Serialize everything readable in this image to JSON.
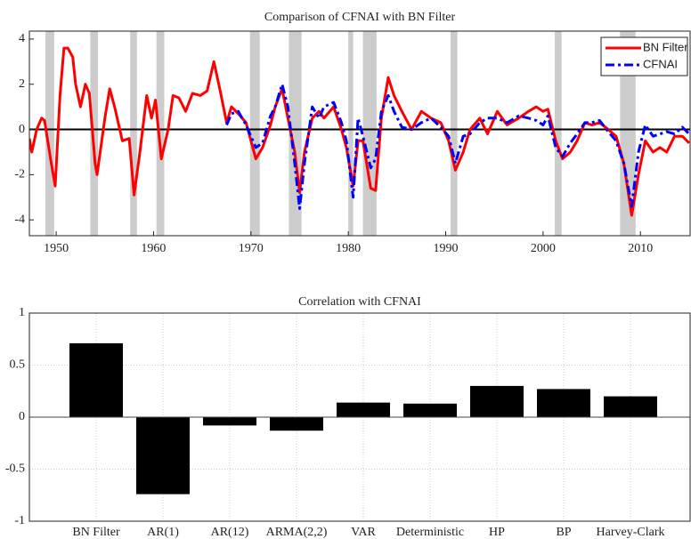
{
  "chart_data": [
    {
      "type": "line",
      "title": "Comparison of CFNAI with BN Filter",
      "x": [
        1947.25,
        1947.5,
        1948.0,
        1948.5,
        1948.8,
        1949.5,
        1949.9,
        1950.4,
        1950.8,
        1951.2,
        1951.7,
        1952.0,
        1952.5,
        1953.0,
        1953.4,
        1954.0,
        1954.2,
        1955.0,
        1955.5,
        1956.0,
        1956.8,
        1957.5,
        1958.0,
        1958.6,
        1959.3,
        1959.8,
        1960.2,
        1960.8,
        1961.5,
        1962.0,
        1962.6,
        1963.3,
        1964.0,
        1964.8,
        1965.5,
        1966.2,
        1966.8,
        1967.5,
        1968.0,
        1968.7,
        1969.5,
        1970.5,
        1971.2,
        1972.0,
        1972.5,
        1973.2,
        1973.8,
        1974.5,
        1975.0,
        1975.5,
        1976.3,
        1977.0,
        1977.5,
        1978.5,
        1979.3,
        1979.8,
        1980.5,
        1981.0,
        1981.5,
        1982.3,
        1982.8,
        1983.4,
        1984.1,
        1984.7,
        1985.5,
        1986.5,
        1987.5,
        1988.5,
        1989.5,
        1990.3,
        1991.0,
        1991.8,
        1992.5,
        1993.5,
        1994.3,
        1995.3,
        1996.3,
        1997.5,
        1998.5,
        1999.3,
        2000.0,
        2000.5,
        2001.3,
        2002.0,
        2002.8,
        2003.5,
        2004.3,
        2005.0,
        2005.8,
        2006.7,
        2007.5,
        2008.3,
        2009.1,
        2009.8,
        2010.5,
        2011.3,
        2012.0,
        2012.7,
        2013.5,
        2014.3,
        2015.0
      ],
      "series": [
        {
          "name": "BN Filter",
          "color": "#ff0000",
          "style": "solid",
          "values": [
            -0.4,
            -1.0,
            0.0,
            0.5,
            0.4,
            -1.5,
            -2.5,
            1.5,
            3.6,
            3.6,
            3.2,
            2.0,
            1.0,
            2.0,
            1.6,
            -1.5,
            -2.0,
            0.5,
            1.8,
            1.0,
            -0.5,
            -0.4,
            -2.9,
            -1.0,
            1.5,
            0.5,
            1.3,
            -1.3,
            0.0,
            1.5,
            1.4,
            0.8,
            1.6,
            1.5,
            1.7,
            3.0,
            1.8,
            0.3,
            1.0,
            0.7,
            0.3,
            -1.3,
            -0.8,
            0.2,
            1.0,
            1.8,
            0.5,
            -1.0,
            -2.8,
            -1.0,
            0.5,
            0.8,
            0.5,
            1.0,
            0.0,
            -0.8,
            -2.5,
            -0.5,
            -0.5,
            -2.6,
            -2.7,
            0.5,
            2.3,
            1.5,
            0.8,
            0.0,
            0.8,
            0.5,
            0.3,
            -0.5,
            -1.8,
            -1.0,
            0.0,
            0.5,
            -0.2,
            0.8,
            0.2,
            0.5,
            0.8,
            1.0,
            0.8,
            0.9,
            -0.5,
            -1.3,
            -1.0,
            -0.5,
            0.3,
            0.2,
            0.3,
            0.0,
            -0.3,
            -1.5,
            -3.8,
            -2.0,
            -0.5,
            -1.0,
            -0.8,
            -1.0,
            -0.3,
            -0.3,
            -0.6
          ]
        },
        {
          "name": "CFNAI",
          "color": "#0000ff",
          "style": "dash-dot",
          "values": [
            null,
            null,
            null,
            null,
            null,
            null,
            null,
            null,
            null,
            null,
            null,
            null,
            null,
            null,
            null,
            null,
            null,
            null,
            null,
            null,
            null,
            null,
            null,
            null,
            null,
            null,
            null,
            null,
            null,
            null,
            null,
            null,
            null,
            null,
            null,
            null,
            null,
            0.2,
            0.7,
            0.8,
            0.2,
            -0.8,
            -0.6,
            0.6,
            1.0,
            2.0,
            1.0,
            -1.5,
            -3.5,
            -1.5,
            1.0,
            0.5,
            1.0,
            1.2,
            0.3,
            -0.5,
            -3.0,
            0.5,
            -0.3,
            -1.7,
            -1.3,
            0.8,
            1.5,
            0.8,
            0.1,
            0.0,
            0.3,
            0.5,
            0.1,
            -0.3,
            -1.5,
            -0.3,
            -0.2,
            0.3,
            0.5,
            0.5,
            0.3,
            0.6,
            0.5,
            0.4,
            0.2,
            0.6,
            -0.8,
            -1.2,
            -0.6,
            -0.2,
            0.3,
            0.3,
            0.4,
            -0.1,
            -0.5,
            -1.5,
            -3.4,
            -1.0,
            0.2,
            -0.3,
            -0.2,
            -0.1,
            -0.2,
            0.1,
            -0.2
          ]
        }
      ],
      "shaded_regions": [
        [
          1948.9,
          1949.8
        ],
        [
          1953.5,
          1954.3
        ],
        [
          1957.6,
          1958.3
        ],
        [
          1960.3,
          1961.1
        ],
        [
          1969.9,
          1970.9
        ],
        [
          1973.9,
          1975.2
        ],
        [
          1980.0,
          1980.5
        ],
        [
          1981.5,
          1982.9
        ],
        [
          1990.5,
          1991.2
        ],
        [
          2001.2,
          2001.9
        ],
        [
          2007.9,
          2009.5
        ]
      ],
      "shade_color": "#cccccc",
      "hline": 0,
      "xlim": [
        1947.25,
        2015.1
      ],
      "xticks": [
        1950,
        1960,
        1970,
        1980,
        1990,
        2000,
        2010
      ],
      "ylim": [
        -4.7,
        4.35
      ],
      "yticks": [
        -4,
        -2,
        0,
        2,
        4
      ],
      "grid": false,
      "legend": "upper right"
    },
    {
      "type": "bar",
      "title": "Correlation with CFNAI",
      "categories": [
        "BN Filter",
        "AR(1)",
        "AR(12)",
        "ARMA(2,2)",
        "VAR",
        "Deterministic",
        "HP",
        "BP",
        "Harvey-Clark"
      ],
      "values": [
        0.71,
        -0.74,
        -0.08,
        -0.13,
        0.14,
        0.13,
        0.3,
        0.27,
        0.2
      ],
      "color": "#000000",
      "ylim": [
        -1,
        1
      ],
      "yticks": [
        -1,
        -0.5,
        0,
        0.5,
        1
      ],
      "grid": true
    }
  ]
}
